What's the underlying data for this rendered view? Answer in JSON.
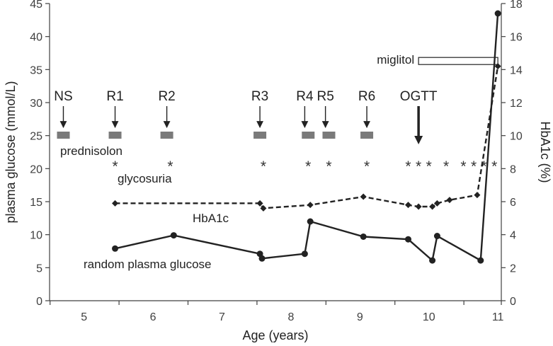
{
  "chart_data": {
    "type": "line",
    "xlabel": "Age (years)",
    "ylabel_left": "plasma glucose (mmol/L)",
    "ylabel_right": "HbA1c (%)",
    "xlim": [
      4.5,
      11.05
    ],
    "ylim_left": [
      0,
      45
    ],
    "ylim_right": [
      0,
      18
    ],
    "x_ticks": [
      "5",
      "6",
      "7",
      "8",
      "9",
      "10",
      "11"
    ],
    "y_ticks_left": [
      "0",
      "5",
      "10",
      "15",
      "20",
      "25",
      "30",
      "35",
      "40",
      "45"
    ],
    "y_ticks_right": [
      "0",
      "2",
      "4",
      "6",
      "8",
      "10",
      "12",
      "14",
      "16",
      "18"
    ],
    "series": [
      {
        "name": "random plasma glucose",
        "axis": "left",
        "style": "solid",
        "marker": "circle",
        "label": "random plasma glucose",
        "points": [
          [
            5.45,
            7.9
          ],
          [
            6.3,
            9.9
          ],
          [
            7.55,
            7.1
          ],
          [
            7.58,
            6.4
          ],
          [
            8.2,
            7.1
          ],
          [
            8.28,
            12.0
          ],
          [
            9.05,
            9.7
          ],
          [
            9.7,
            9.3
          ],
          [
            10.05,
            6.1
          ],
          [
            10.12,
            9.8
          ],
          [
            10.75,
            6.1
          ],
          [
            11.0,
            43.5
          ]
        ]
      },
      {
        "name": "HbA1c",
        "axis": "right",
        "style": "dashed",
        "marker": "diamond",
        "label": "HbA1c",
        "points": [
          [
            5.45,
            5.9
          ],
          [
            7.55,
            5.9
          ],
          [
            7.6,
            5.6
          ],
          [
            8.28,
            5.8
          ],
          [
            9.05,
            6.3
          ],
          [
            9.7,
            5.8
          ],
          [
            9.85,
            5.7
          ],
          [
            10.05,
            5.7
          ],
          [
            10.12,
            5.9
          ],
          [
            10.3,
            6.1
          ],
          [
            10.7,
            6.4
          ],
          [
            11.0,
            14.2
          ]
        ]
      }
    ],
    "events": [
      {
        "label": "NS",
        "x": 4.7
      },
      {
        "label": "R1",
        "x": 5.45
      },
      {
        "label": "R2",
        "x": 6.2
      },
      {
        "label": "R3",
        "x": 7.55
      },
      {
        "label": "R4",
        "x": 8.2
      },
      {
        "label": "R5",
        "x": 8.5
      },
      {
        "label": "R6",
        "x": 9.1
      },
      {
        "label": "OGTT",
        "x": 9.85
      }
    ],
    "prednisolon_label": "prednisolon",
    "prednisolon_x": [
      4.7,
      5.45,
      6.2,
      7.55,
      8.25,
      8.55,
      9.1
    ],
    "glycosuria_label": "glycosuria",
    "glycosuria_x": [
      5.45,
      6.25,
      7.6,
      8.25,
      8.55,
      9.1,
      9.7,
      9.85,
      10.0,
      10.25,
      10.5,
      10.65,
      10.8,
      10.95
    ],
    "glycosuria_symbol": "*",
    "miglitol_label": "miglitol",
    "miglitol_range": [
      9.85,
      11.0
    ],
    "miglitol_level": 36.3
  }
}
